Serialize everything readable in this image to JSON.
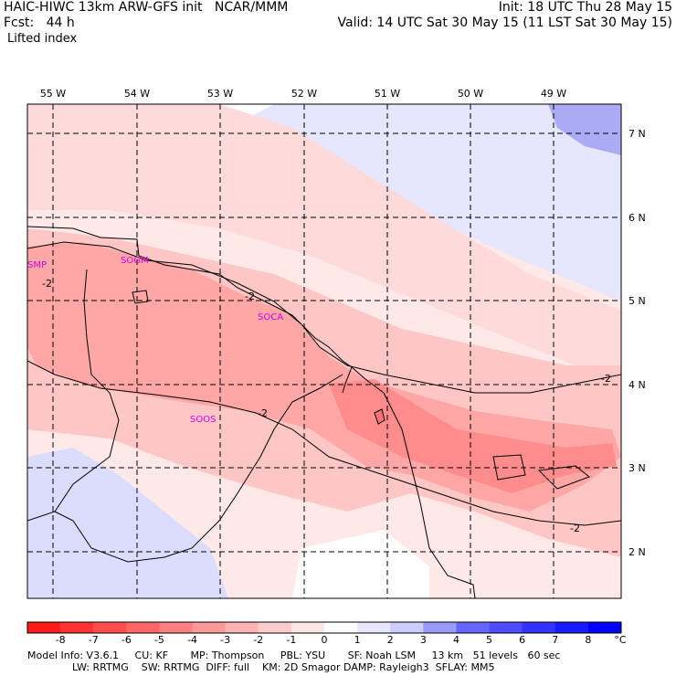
{
  "header": {
    "model_line": "HAIC-HIWC 13km ARW-GFS init   NCAR/MMM",
    "fcst_line": "Fcst:   44 h",
    "field_name": "Lifted index",
    "init_line": "Init: 18 UTC Thu 28 May 15",
    "valid_line": "Valid: 14 UTC Sat 30 May 15 (11 LST Sat 30 May 15)"
  },
  "map": {
    "lon_labels": [
      "55 W",
      "54 W",
      "53 W",
      "52 W",
      "51 W",
      "50 W",
      "49 W"
    ],
    "lat_labels": [
      "7 N",
      "6 N",
      "5 N",
      "4 N",
      "3 N",
      "2 N"
    ],
    "stations": [
      "SMP",
      "SOGM",
      "SOCA",
      "SOOS"
    ],
    "contour_labels": [
      "-2",
      "-2",
      "-2",
      "-2",
      "-2"
    ]
  },
  "colorbar": {
    "labels": [
      "-8",
      "-7",
      "-6",
      "-5",
      "-4",
      "-3",
      "-2",
      "-1",
      "0",
      "1",
      "2",
      "3",
      "4",
      "5",
      "6",
      "7",
      "8"
    ],
    "unit": "°C",
    "colors": [
      "#ff1a1a",
      "#ff3333",
      "#ff4d4d",
      "#ff6666",
      "#ff8080",
      "#ff9999",
      "#ffb3b3",
      "#ffcccc",
      "#ffe6e6",
      "#ffffff",
      "#e6e6ff",
      "#ccccff",
      "#9999ff",
      "#6666ff",
      "#4d4dff",
      "#3333ff",
      "#1a1aff",
      "#0000ff"
    ]
  },
  "footer": {
    "line1": "Model Info: V3.6.1     CU: KF       MP: Thompson     PBL: YSU       SF: Noah LSM     13 km   51 levels   60 sec",
    "line2": "              LW: RRTMG    SW: RRTMG  DIFF: full    KM: 2D Smagor DAMP: Rayleigh3  SFLAY: MM5"
  }
}
